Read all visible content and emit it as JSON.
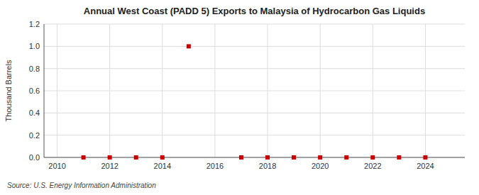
{
  "chart_data": {
    "type": "scatter",
    "title": "Annual West Coast (PADD 5) Exports to Malaysia of Hydrocarbon Gas Liquids",
    "y_label": "Thousand Barrels",
    "source": "Source: U.S. Energy Information Administration",
    "x": [
      2011,
      2012,
      2013,
      2014,
      2015,
      2017,
      2018,
      2019,
      2020,
      2021,
      2022,
      2023,
      2024
    ],
    "values": [
      0.0,
      0.0,
      0.0,
      0.0,
      1.0,
      0.0,
      0.0,
      0.0,
      0.0,
      0.0,
      0.0,
      0.0,
      0.0
    ],
    "color": "#CC0000",
    "marker": "square",
    "xlim": [
      2009.5,
      2025.5
    ],
    "ylim": [
      0.0,
      1.2
    ],
    "xticks": [
      2010,
      2012,
      2014,
      2016,
      2018,
      2020,
      2022,
      2024
    ],
    "yticks": [
      {
        "value": 0.0,
        "label": "0.0"
      },
      0.2,
      0.4,
      0.6,
      0.8,
      {
        "value": 1.0,
        "label": "1.0"
      },
      1.2
    ],
    "grid": true
  }
}
